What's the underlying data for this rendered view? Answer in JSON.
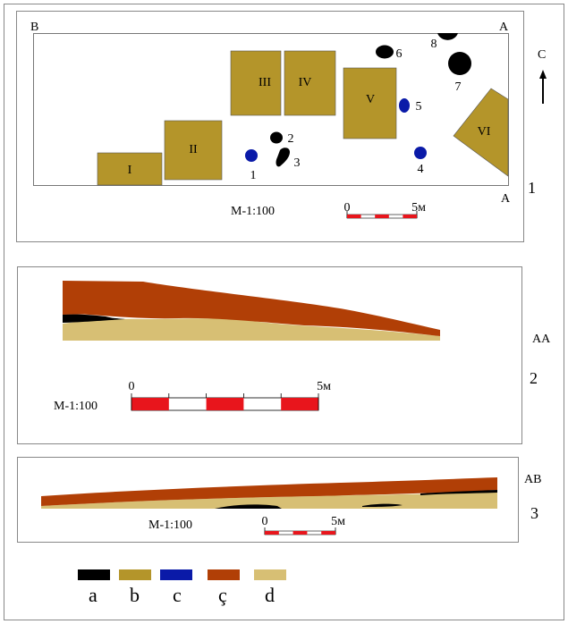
{
  "colors": {
    "a": "#000000",
    "b": "#b4952a",
    "c": "#0a1aa8",
    "c_cedilla": "#b13f06",
    "d": "#d7bf74",
    "scale_red": "#e8151c",
    "frame": "#888888"
  },
  "plan": {
    "panel_number": "1",
    "corner_b": "B",
    "corner_a_top": "A",
    "corner_a_bottom": "A",
    "north": "C",
    "scale_text": "M-1:100",
    "scale_zero": "0",
    "scale_end": "5м",
    "rooms": [
      "I",
      "II",
      "III",
      "IV",
      "V",
      "VI"
    ],
    "features": [
      "1",
      "2",
      "3",
      "4",
      "5",
      "6",
      "7",
      "8"
    ]
  },
  "section_aa": {
    "panel_number": "2",
    "title": "AA",
    "scale_text": "M-1:100",
    "scale_zero": "0",
    "scale_end": "5м"
  },
  "section_ab": {
    "panel_number": "3",
    "title": "AB",
    "scale_text": "M-1:100",
    "scale_zero": "0",
    "scale_end": "5м"
  },
  "legend": {
    "items": [
      {
        "label": "a",
        "color": "#000000"
      },
      {
        "label": "b",
        "color": "#b4952a"
      },
      {
        "label": "c",
        "color": "#0a1aa8"
      },
      {
        "label": "ç",
        "color": "#b13f06"
      },
      {
        "label": "d",
        "color": "#d7bf74"
      }
    ]
  }
}
